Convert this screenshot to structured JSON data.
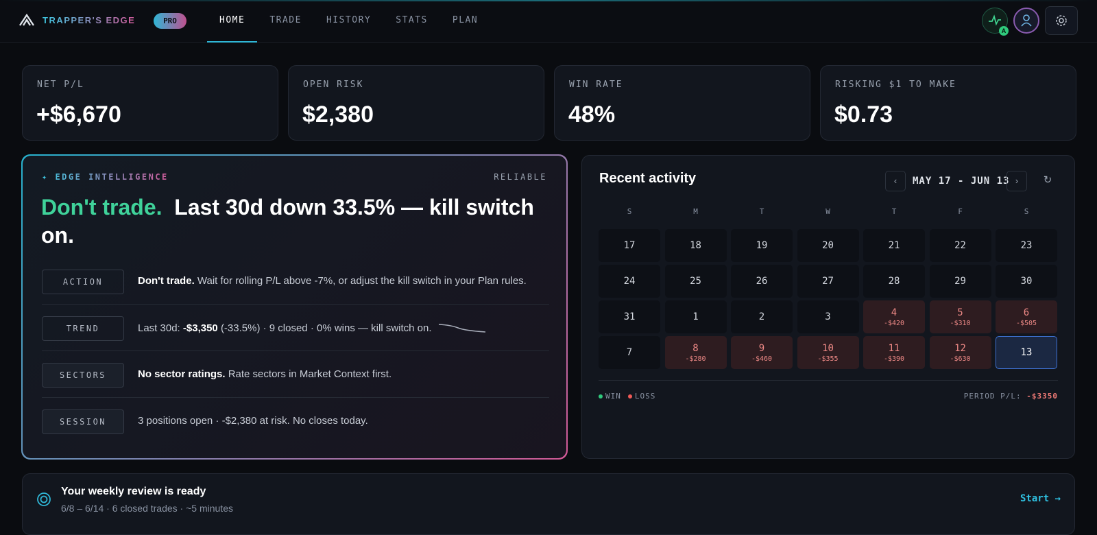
{
  "nav": {
    "brand": "TRAPPER'S EDGE",
    "badge": "PRO",
    "tabs": [
      "HOME",
      "TRADE",
      "HISTORY",
      "STATS",
      "PLAN"
    ],
    "active_tab": 0,
    "avatar_badge": "A"
  },
  "stats": [
    {
      "label": "NET P/L",
      "value": "+$6,670"
    },
    {
      "label": "OPEN RISK",
      "value": "$2,380"
    },
    {
      "label": "WIN RATE",
      "value": "48%"
    },
    {
      "label": "RISKING $1 TO MAKE",
      "value": "$0.73"
    }
  ],
  "intel": {
    "kicker": "✦ EDGE INTELLIGENCE",
    "status": "RELIABLE",
    "headline_accent": "Don't trade.",
    "headline": "Last 30d down 33.5% — kill switch on.",
    "rows": [
      {
        "tag": "ACTION",
        "bold": "Don't trade.",
        "text": "Wait for rolling P/L above -7%, or adjust the kill switch in your Plan rules."
      },
      {
        "tag": "TREND",
        "lead": "Last 30d:",
        "bold": "-$3,350",
        "text": "(-33.5%) · 9 closed · 0% wins — kill switch on."
      },
      {
        "tag": "SECTORS",
        "bold": "No sector ratings.",
        "text": "Rate sectors in Market Context first."
      },
      {
        "tag": "SESSION",
        "text": "3 positions open · -$2,380 at risk. No closes today."
      }
    ]
  },
  "activity": {
    "title": "Recent activity",
    "prev": "‹",
    "range": "MAY 17 - JUN 13",
    "next": "›",
    "refresh": "↻",
    "weekdays": [
      "S",
      "M",
      "T",
      "W",
      "T",
      "F",
      "S"
    ],
    "days": [
      {
        "day": "17"
      },
      {
        "day": "18"
      },
      {
        "day": "19"
      },
      {
        "day": "20"
      },
      {
        "day": "21"
      },
      {
        "day": "22"
      },
      {
        "day": "23"
      },
      {
        "day": "24"
      },
      {
        "day": "25"
      },
      {
        "day": "26"
      },
      {
        "day": "27"
      },
      {
        "day": "28"
      },
      {
        "day": "29"
      },
      {
        "day": "30"
      },
      {
        "day": "31"
      },
      {
        "day": "1"
      },
      {
        "day": "2"
      },
      {
        "day": "3"
      },
      {
        "day": "4",
        "pnl": "-$420"
      },
      {
        "day": "5",
        "pnl": "-$310"
      },
      {
        "day": "6",
        "pnl": "-$505"
      },
      {
        "day": "7"
      },
      {
        "day": "8",
        "pnl": "-$280"
      },
      {
        "day": "9",
        "pnl": "-$460"
      },
      {
        "day": "10",
        "pnl": "-$355"
      },
      {
        "day": "11",
        "pnl": "-$390"
      },
      {
        "day": "12",
        "pnl": "-$630"
      },
      {
        "day": "13",
        "today": true
      }
    ],
    "legend": [
      "WIN",
      "LOSS"
    ],
    "period_label": "PERIOD P/L:",
    "period_value": "-$3350"
  },
  "review": {
    "title": "Your weekly review is ready",
    "subtitle": "6/8 – 6/14 · 6 closed trades · ~5 minutes",
    "action": "Start →"
  }
}
